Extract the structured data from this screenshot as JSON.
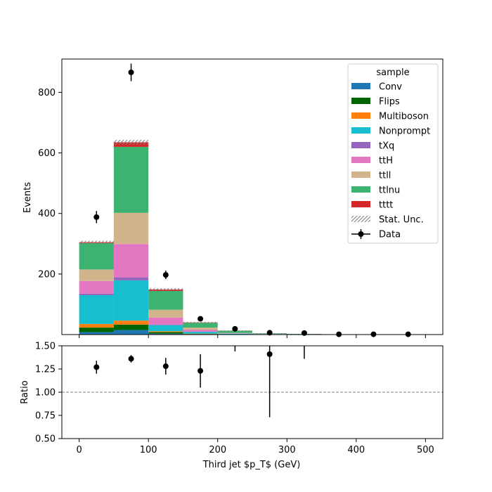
{
  "chart_data": [
    {
      "type": "bar",
      "stacked": true,
      "panel": "main",
      "xlabel": "Third jet  $p_T$ (GeV)",
      "ylabel": "Events",
      "xlim": [
        -25,
        525
      ],
      "ylim": [
        0,
        910
      ],
      "bin_edges": [
        0,
        50,
        100,
        150,
        200,
        250,
        300,
        350,
        400,
        450,
        500
      ],
      "x_ticks": [
        0,
        100,
        200,
        300,
        400,
        500
      ],
      "y_ticks": [
        200,
        400,
        600,
        800
      ],
      "legend": {
        "title": "sample",
        "placement": "top-right"
      },
      "series": [
        {
          "name": "Conv",
          "color": "#1f77b4",
          "values": [
            8,
            15,
            3,
            1,
            0,
            0,
            0,
            0,
            0,
            0
          ]
        },
        {
          "name": "Flips",
          "color": "#006400",
          "values": [
            15,
            18,
            5,
            1,
            0.5,
            0,
            0,
            0,
            0,
            0
          ]
        },
        {
          "name": "Multiboson",
          "color": "#ff7f0e",
          "values": [
            12,
            13,
            3,
            1,
            0.5,
            0,
            0,
            0,
            0,
            0
          ]
        },
        {
          "name": "Nonprompt",
          "color": "#17becf",
          "values": [
            95,
            133,
            20,
            6,
            2,
            1,
            0.5,
            0,
            0,
            0
          ]
        },
        {
          "name": "tXq",
          "color": "#9467bd",
          "values": [
            5,
            10,
            2,
            1,
            0,
            0,
            0,
            0,
            0,
            0
          ]
        },
        {
          "name": "ttH",
          "color": "#e377c2",
          "values": [
            42,
            110,
            23,
            6,
            1,
            0.5,
            0,
            0,
            0,
            0
          ]
        },
        {
          "name": "ttll",
          "color": "#d2b48c",
          "values": [
            38,
            103,
            26,
            7,
            1.5,
            0.5,
            0.5,
            0,
            0,
            0
          ]
        },
        {
          "name": "ttlnu",
          "color": "#3cb371",
          "values": [
            87,
            218,
            62,
            16,
            7,
            2,
            1,
            0.5,
            0.5,
            0
          ]
        },
        {
          "name": "tttt",
          "color": "#d62728",
          "values": [
            3,
            15,
            5,
            1,
            0.5,
            0,
            0,
            0,
            0,
            0
          ]
        }
      ],
      "stat_unc": {
        "name": "Stat. Unc.",
        "values": [
          5,
          8,
          4,
          2,
          1,
          0.5,
          0.5,
          0.3,
          0.3,
          0.2
        ]
      },
      "data_series": {
        "name": "Data",
        "color": "#000000",
        "x": [
          25,
          75,
          125,
          175,
          225,
          275,
          325,
          375,
          425,
          475
        ],
        "y": [
          388,
          866,
          197,
          52,
          19,
          6,
          5,
          1,
          1,
          1
        ],
        "yerr": [
          20,
          29,
          14,
          7,
          4.5,
          2.5,
          2.2,
          1,
          1,
          1
        ]
      }
    },
    {
      "type": "scatter",
      "panel": "ratio",
      "xlabel": "Third jet  $p_T$ (GeV)",
      "ylabel": "Ratio",
      "xlim": [
        -25,
        525
      ],
      "ylim": [
        0.5,
        1.5
      ],
      "y_ticks": [
        0.5,
        0.75,
        1.0,
        1.25,
        1.5
      ],
      "y_tick_labels": [
        "0.50",
        "0.75",
        "1.00",
        "1.25",
        "1.50"
      ],
      "reference_line": 1.0,
      "x": [
        25,
        75,
        125,
        175,
        275
      ],
      "y": [
        1.27,
        1.36,
        1.28,
        1.23,
        1.41
      ],
      "yerr": [
        0.07,
        0.04,
        0.09,
        0.18,
        0.68
      ],
      "offscale_error_bars": [
        {
          "x": 225,
          "low": 1.44
        },
        {
          "x": 325,
          "low": 1.36
        }
      ]
    }
  ]
}
